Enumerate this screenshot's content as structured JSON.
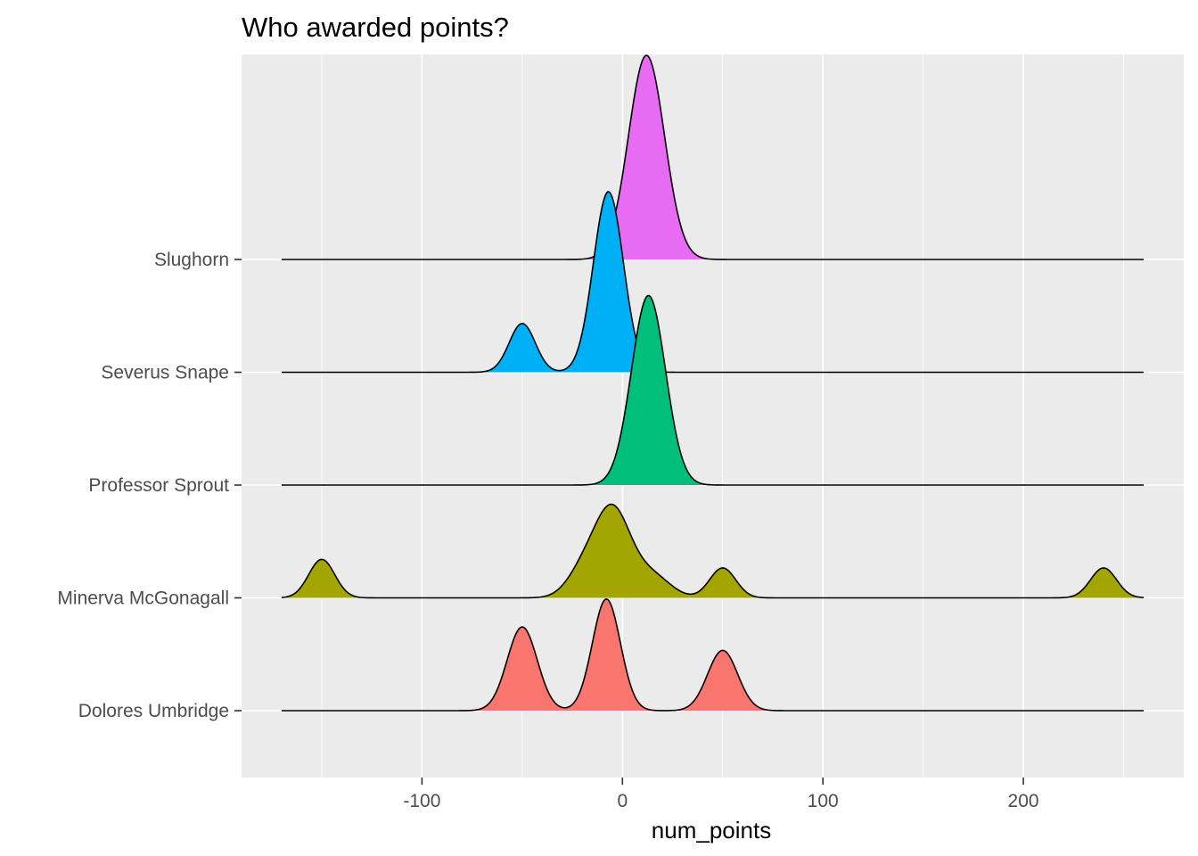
{
  "chart_data": {
    "type": "ridgeline",
    "title": "Who awarded points?",
    "xlabel": "num_points",
    "ylabel": "",
    "xlim": [
      -190,
      280
    ],
    "x_ticks": [
      -100,
      0,
      100,
      200
    ],
    "x_tick_labels": [
      "-100",
      "0",
      "100",
      "200"
    ],
    "x_minor_ticks": [
      -150,
      -50,
      50,
      150,
      250
    ],
    "density_range": [
      -170,
      260
    ],
    "grid": true,
    "legend": "none",
    "categories": [
      "Dolores Umbridge",
      "Minerva McGonagall",
      "Professor Sprout",
      "Severus Snape",
      "Slughorn"
    ],
    "series": [
      {
        "category": "Dolores Umbridge",
        "color": "#F8766D",
        "peak_height": 0.99,
        "components": [
          {
            "mean": -50,
            "sd": 7.5,
            "weight": 0.75
          },
          {
            "mean": -8,
            "sd": 7,
            "weight": 1.0
          },
          {
            "mean": 50,
            "sd": 7.5,
            "weight": 0.54
          }
        ]
      },
      {
        "category": "Minerva McGonagall",
        "color": "#A3A500",
        "peak_height": 0.83,
        "components": [
          {
            "mean": -150,
            "sd": 6.5,
            "weight": 0.36
          },
          {
            "mean": -20,
            "sd": 8,
            "weight": 0.22
          },
          {
            "mean": -5,
            "sd": 9,
            "weight": 0.82
          },
          {
            "mean": 15,
            "sd": 9,
            "weight": 0.2
          },
          {
            "mean": 50,
            "sd": 6.5,
            "weight": 0.28
          },
          {
            "mean": 240,
            "sd": 6.5,
            "weight": 0.28
          }
        ]
      },
      {
        "category": "Professor Sprout",
        "color": "#00BF7D",
        "peak_height": 1.68,
        "components": [
          {
            "mean": 13,
            "sd": 8.5,
            "weight": 1.0
          }
        ]
      },
      {
        "category": "Severus Snape",
        "color": "#00B0F6",
        "peak_height": 1.6,
        "components": [
          {
            "mean": -50,
            "sd": 6.5,
            "weight": 0.27
          },
          {
            "mean": -7,
            "sd": 7.5,
            "weight": 1.0
          }
        ]
      },
      {
        "category": "Slughorn",
        "color": "#E76BF3",
        "peak_height": 1.81,
        "components": [
          {
            "mean": 12,
            "sd": 9,
            "weight": 1.0
          }
        ]
      }
    ]
  }
}
